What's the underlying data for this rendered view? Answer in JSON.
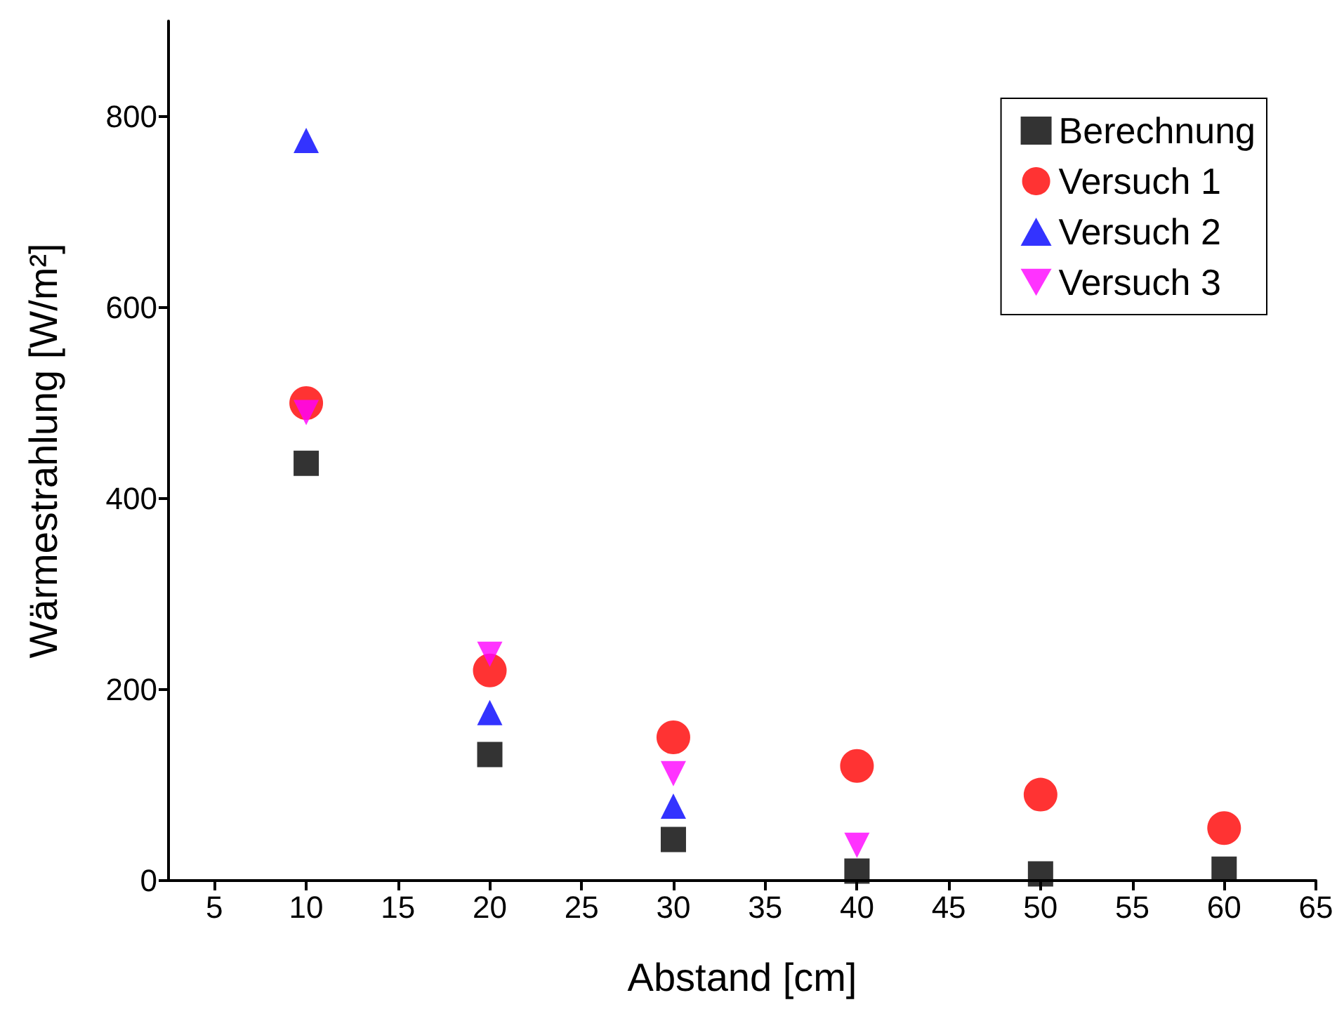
{
  "chart_data": {
    "type": "scatter",
    "xlabel": "Abstand [cm]",
    "ylabel": "Wärmestrahlung [W/m²]",
    "xlim": [
      2.5,
      65
    ],
    "xticks": [
      5,
      10,
      15,
      20,
      25,
      30,
      35,
      40,
      45,
      50,
      55,
      60,
      65
    ],
    "ylim": [
      0,
      900
    ],
    "yticks": [
      0,
      200,
      400,
      600,
      800
    ],
    "grid": false,
    "legend": "top right",
    "series": [
      {
        "name": "Berechnung",
        "color": "#000000",
        "marker": "square",
        "x": [
          10,
          20,
          30,
          40,
          50,
          60
        ],
        "values": [
          437,
          132,
          43,
          10,
          7,
          12
        ]
      },
      {
        "name": "Versuch 1",
        "color": "#ff0000",
        "marker": "circle",
        "x": [
          10,
          20,
          30,
          40,
          50,
          60
        ],
        "values": [
          500,
          220,
          150,
          120,
          90,
          55
        ]
      },
      {
        "name": "Versuch 2",
        "color": "#0000ff",
        "marker": "triangle",
        "x": [
          10,
          20,
          30
        ],
        "values": [
          775,
          176,
          78
        ]
      },
      {
        "name": "Versuch 3",
        "color": "#ff00ff",
        "marker": "triangle-down",
        "x": [
          10,
          20,
          30,
          40
        ],
        "values": [
          490,
          237,
          112,
          37
        ]
      }
    ]
  }
}
